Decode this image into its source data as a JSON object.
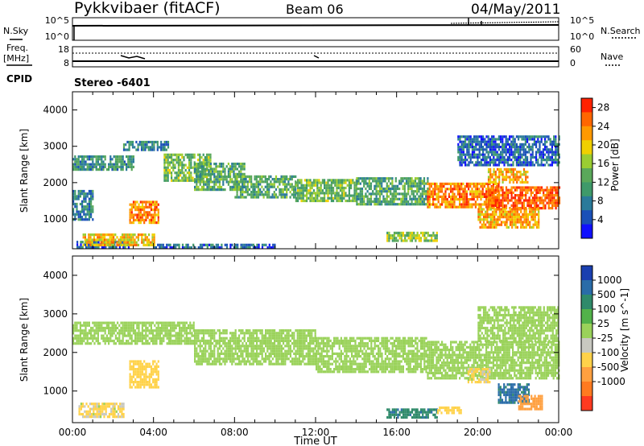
{
  "header": {
    "station": "Pykkvibaer (fitACF)",
    "beam": "Beam 06",
    "date": "04/May/2011"
  },
  "top_panels": {
    "noise": {
      "left_label": "N.Sky",
      "right_label": "N.Search",
      "left_ticks": [
        "10^5",
        "10^0"
      ],
      "right_ticks": [
        "10^5",
        "10^0"
      ]
    },
    "freq": {
      "left_label_1": "Freq.",
      "left_label_2": "[MHz]",
      "right_label": "Nave",
      "left_ticks": [
        "18",
        "8"
      ],
      "right_ticks": [
        "60",
        "0"
      ]
    },
    "cpid": {
      "label": "CPID",
      "value": "Stereo -6401"
    }
  },
  "chart_data": [
    {
      "type": "heatmap",
      "name": "power",
      "ylabel": "Slant Range [km]",
      "xlabel": "",
      "xlim": [
        0,
        24
      ],
      "ylim": [
        180,
        4500
      ],
      "y_ticks": [
        "4000",
        "3000",
        "2000",
        "1000"
      ],
      "y_tick_values": [
        4000,
        3000,
        2000,
        1000
      ],
      "colorbar": {
        "label": "Power [dB]",
        "ticks": [
          "28",
          "24",
          "20",
          "16",
          "12",
          "8",
          "4"
        ],
        "tick_values": [
          28,
          24,
          20,
          16,
          12,
          8,
          4
        ],
        "range": [
          0,
          30
        ],
        "colors": [
          "#1010ff",
          "#1a50b8",
          "#2a7a9a",
          "#3f9a6a",
          "#5aa85a",
          "#9acd32",
          "#f0d000",
          "#ff9900",
          "#ff6600",
          "#ff2200"
        ]
      },
      "features": [
        {
          "x0": 0.0,
          "x1": 3.0,
          "r0": 2350,
          "r1": 2750,
          "value": 10
        },
        {
          "x0": 2.5,
          "x1": 4.7,
          "r0": 2900,
          "r1": 3150,
          "value": 8
        },
        {
          "x0": 4.5,
          "x1": 6.8,
          "r0": 2050,
          "r1": 2800,
          "value": 14
        },
        {
          "x0": 6.0,
          "x1": 8.5,
          "r0": 1800,
          "r1": 2550,
          "value": 12
        },
        {
          "x0": 8.0,
          "x1": 11.0,
          "r0": 1600,
          "r1": 2200,
          "value": 12
        },
        {
          "x0": 11.0,
          "x1": 14.0,
          "r0": 1500,
          "r1": 2100,
          "value": 14
        },
        {
          "x0": 14.0,
          "x1": 17.5,
          "r0": 1400,
          "r1": 2150,
          "value": 12
        },
        {
          "x0": 17.5,
          "x1": 21.0,
          "r0": 1300,
          "r1": 2000,
          "value": 24
        },
        {
          "x0": 20.5,
          "x1": 24.0,
          "r0": 1300,
          "r1": 1900,
          "value": 26
        },
        {
          "x0": 20.0,
          "x1": 23.0,
          "r0": 800,
          "r1": 1300,
          "value": 22
        },
        {
          "x0": 20.5,
          "x1": 22.5,
          "r0": 2000,
          "r1": 2400,
          "value": 22
        },
        {
          "x0": 19.0,
          "x1": 24.0,
          "r0": 2500,
          "r1": 3300,
          "value": 6
        },
        {
          "x0": 2.8,
          "x1": 4.2,
          "r0": 900,
          "r1": 1500,
          "value": 24
        },
        {
          "x0": 0.2,
          "x1": 2.8,
          "r0": 200,
          "r1": 400,
          "value": 6
        },
        {
          "x0": 0.5,
          "x1": 4.0,
          "r0": 300,
          "r1": 600,
          "value": 20
        },
        {
          "x0": 4.0,
          "x1": 10.0,
          "r0": 180,
          "r1": 320,
          "value": 6
        },
        {
          "x0": 15.5,
          "x1": 18.0,
          "r0": 400,
          "r1": 650,
          "value": 16
        },
        {
          "x0": 0.0,
          "x1": 1.0,
          "r0": 1000,
          "r1": 1800,
          "value": 8
        }
      ]
    },
    {
      "type": "heatmap",
      "name": "velocity",
      "ylabel": "Slant Range [km]",
      "xlabel": "Time UT",
      "xlim": [
        0,
        24
      ],
      "ylim": [
        180,
        4500
      ],
      "x_ticks": [
        "00:00",
        "04:00",
        "08:00",
        "12:00",
        "16:00",
        "20:00",
        "00:00"
      ],
      "x_tick_values": [
        0,
        4,
        8,
        12,
        16,
        20,
        24
      ],
      "y_ticks": [
        "4000",
        "3000",
        "2000",
        "1000"
      ],
      "y_tick_values": [
        4000,
        3000,
        2000,
        1000
      ],
      "colorbar": {
        "label": "Velocity [m s^-1]",
        "ticks": [
          "1000",
          "500",
          "100",
          "25",
          "-25",
          "-100",
          "-500",
          "-1000"
        ],
        "tick_values": [
          1000,
          500,
          100,
          25,
          -25,
          -100,
          -500,
          -1000
        ],
        "colors": [
          "#1a3fb0",
          "#2a6ca8",
          "#2f8a6a",
          "#52b24a",
          "#9ad25a",
          "#c8c8c0",
          "#ffd24a",
          "#ffa040",
          "#ff7a20",
          "#ff3a20"
        ]
      },
      "features": [
        {
          "x0": 0.0,
          "x1": 6.0,
          "r0": 2200,
          "r1": 2800,
          "value": 0
        },
        {
          "x0": 6.0,
          "x1": 12.0,
          "r0": 1700,
          "r1": 2600,
          "value": 0
        },
        {
          "x0": 12.0,
          "x1": 17.5,
          "r0": 1500,
          "r1": 2400,
          "value": 0
        },
        {
          "x0": 17.5,
          "x1": 24.0,
          "r0": 1300,
          "r1": 2300,
          "value": 0
        },
        {
          "x0": 20.0,
          "x1": 24.0,
          "r0": 2300,
          "r1": 3200,
          "value": 0
        },
        {
          "x0": 2.8,
          "x1": 4.2,
          "r0": 1100,
          "r1": 1800,
          "value": -300
        },
        {
          "x0": 15.5,
          "x1": 18.0,
          "r0": 300,
          "r1": 550,
          "value": 400
        },
        {
          "x0": 18.0,
          "x1": 19.2,
          "r0": 400,
          "r1": 600,
          "value": -300
        },
        {
          "x0": 21.0,
          "x1": 22.5,
          "r0": 700,
          "r1": 1200,
          "value": 600
        },
        {
          "x0": 22.0,
          "x1": 23.2,
          "r0": 500,
          "r1": 900,
          "value": -700
        },
        {
          "x0": 0.3,
          "x1": 2.5,
          "r0": 300,
          "r1": 700,
          "value": -200
        },
        {
          "x0": 19.5,
          "x1": 20.6,
          "r0": 1200,
          "r1": 1600,
          "value": -200
        }
      ]
    }
  ]
}
